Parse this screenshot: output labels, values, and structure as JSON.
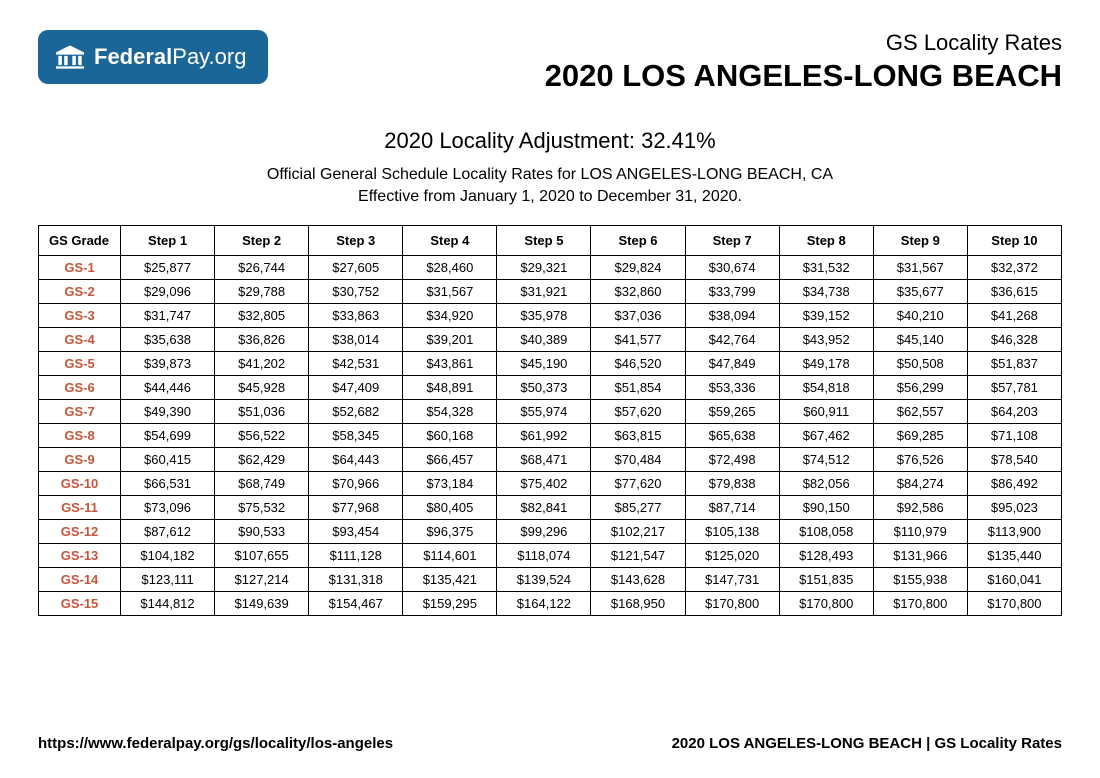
{
  "logo": {
    "text_strong": "Federal",
    "text_light": "Pay.org",
    "badge_color": "#1b6698"
  },
  "header": {
    "small": "GS Locality Rates",
    "big": "2020 LOS ANGELES-LONG BEACH"
  },
  "adjustment_line": "2020 Locality Adjustment: 32.41%",
  "subtitle_line1": "Official General Schedule Locality Rates for LOS ANGELES-LONG BEACH, CA",
  "subtitle_line2": "Effective from January 1, 2020 to December 31, 2020.",
  "table": {
    "grade_header": "GS Grade",
    "step_headers": [
      "Step 1",
      "Step 2",
      "Step 3",
      "Step 4",
      "Step 5",
      "Step 6",
      "Step 7",
      "Step 8",
      "Step 9",
      "Step 10"
    ],
    "rows": [
      {
        "grade": "GS-1",
        "cells": [
          "$25,877",
          "$26,744",
          "$27,605",
          "$28,460",
          "$29,321",
          "$29,824",
          "$30,674",
          "$31,532",
          "$31,567",
          "$32,372"
        ]
      },
      {
        "grade": "GS-2",
        "cells": [
          "$29,096",
          "$29,788",
          "$30,752",
          "$31,567",
          "$31,921",
          "$32,860",
          "$33,799",
          "$34,738",
          "$35,677",
          "$36,615"
        ]
      },
      {
        "grade": "GS-3",
        "cells": [
          "$31,747",
          "$32,805",
          "$33,863",
          "$34,920",
          "$35,978",
          "$37,036",
          "$38,094",
          "$39,152",
          "$40,210",
          "$41,268"
        ]
      },
      {
        "grade": "GS-4",
        "cells": [
          "$35,638",
          "$36,826",
          "$38,014",
          "$39,201",
          "$40,389",
          "$41,577",
          "$42,764",
          "$43,952",
          "$45,140",
          "$46,328"
        ]
      },
      {
        "grade": "GS-5",
        "cells": [
          "$39,873",
          "$41,202",
          "$42,531",
          "$43,861",
          "$45,190",
          "$46,520",
          "$47,849",
          "$49,178",
          "$50,508",
          "$51,837"
        ]
      },
      {
        "grade": "GS-6",
        "cells": [
          "$44,446",
          "$45,928",
          "$47,409",
          "$48,891",
          "$50,373",
          "$51,854",
          "$53,336",
          "$54,818",
          "$56,299",
          "$57,781"
        ]
      },
      {
        "grade": "GS-7",
        "cells": [
          "$49,390",
          "$51,036",
          "$52,682",
          "$54,328",
          "$55,974",
          "$57,620",
          "$59,265",
          "$60,911",
          "$62,557",
          "$64,203"
        ]
      },
      {
        "grade": "GS-8",
        "cells": [
          "$54,699",
          "$56,522",
          "$58,345",
          "$60,168",
          "$61,992",
          "$63,815",
          "$65,638",
          "$67,462",
          "$69,285",
          "$71,108"
        ]
      },
      {
        "grade": "GS-9",
        "cells": [
          "$60,415",
          "$62,429",
          "$64,443",
          "$66,457",
          "$68,471",
          "$70,484",
          "$72,498",
          "$74,512",
          "$76,526",
          "$78,540"
        ]
      },
      {
        "grade": "GS-10",
        "cells": [
          "$66,531",
          "$68,749",
          "$70,966",
          "$73,184",
          "$75,402",
          "$77,620",
          "$79,838",
          "$82,056",
          "$84,274",
          "$86,492"
        ]
      },
      {
        "grade": "GS-11",
        "cells": [
          "$73,096",
          "$75,532",
          "$77,968",
          "$80,405",
          "$82,841",
          "$85,277",
          "$87,714",
          "$90,150",
          "$92,586",
          "$95,023"
        ]
      },
      {
        "grade": "GS-12",
        "cells": [
          "$87,612",
          "$90,533",
          "$93,454",
          "$96,375",
          "$99,296",
          "$102,217",
          "$105,138",
          "$108,058",
          "$110,979",
          "$113,900"
        ]
      },
      {
        "grade": "GS-13",
        "cells": [
          "$104,182",
          "$107,655",
          "$111,128",
          "$114,601",
          "$118,074",
          "$121,547",
          "$125,020",
          "$128,493",
          "$131,966",
          "$135,440"
        ]
      },
      {
        "grade": "GS-14",
        "cells": [
          "$123,111",
          "$127,214",
          "$131,318",
          "$135,421",
          "$139,524",
          "$143,628",
          "$147,731",
          "$151,835",
          "$155,938",
          "$160,041"
        ]
      },
      {
        "grade": "GS-15",
        "cells": [
          "$144,812",
          "$149,639",
          "$154,467",
          "$159,295",
          "$164,122",
          "$168,950",
          "$170,800",
          "$170,800",
          "$170,800",
          "$170,800"
        ]
      }
    ],
    "grade_color": "#c6553b",
    "border_color": "#000000",
    "header_fontsize": 13,
    "cell_fontsize": 13
  },
  "footer": {
    "left": "https://www.federalpay.org/gs/locality/los-angeles",
    "right": "2020 LOS ANGELES-LONG BEACH | GS Locality Rates"
  }
}
